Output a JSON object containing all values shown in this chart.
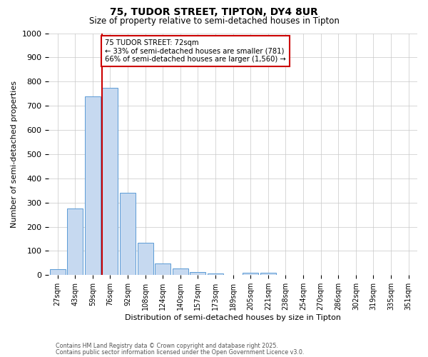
{
  "title1": "75, TUDOR STREET, TIPTON, DY4 8UR",
  "title2": "Size of property relative to semi-detached houses in Tipton",
  "xlabel": "Distribution of semi-detached houses by size in Tipton",
  "ylabel": "Number of semi-detached properties",
  "bins": [
    "27sqm",
    "43sqm",
    "59sqm",
    "76sqm",
    "92sqm",
    "108sqm",
    "124sqm",
    "140sqm",
    "157sqm",
    "173sqm",
    "189sqm",
    "205sqm",
    "221sqm",
    "238sqm",
    "254sqm",
    "270sqm",
    "286sqm",
    "302sqm",
    "319sqm",
    "335sqm",
    "351sqm"
  ],
  "values": [
    25,
    275,
    740,
    775,
    340,
    135,
    47,
    27,
    13,
    8,
    0,
    10,
    10,
    0,
    0,
    0,
    0,
    0,
    0,
    0,
    0
  ],
  "bar_color": "#c6d9f0",
  "bar_edge_color": "#5b9bd5",
  "red_line_index": 3,
  "annotation_line1": "75 TUDOR STREET: 72sqm",
  "annotation_line2": "← 33% of semi-detached houses are smaller (781)",
  "annotation_line3": "66% of semi-detached houses are larger (1,560) →",
  "annotation_box_color": "#ffffff",
  "annotation_box_edge": "#cc0000",
  "red_line_color": "#cc0000",
  "footer1": "Contains HM Land Registry data © Crown copyright and database right 2025.",
  "footer2": "Contains public sector information licensed under the Open Government Licence v3.0.",
  "ylim": [
    0,
    1000
  ],
  "yticks": [
    0,
    100,
    200,
    300,
    400,
    500,
    600,
    700,
    800,
    900,
    1000
  ],
  "background_color": "#ffffff",
  "grid_color": "#c8c8c8"
}
